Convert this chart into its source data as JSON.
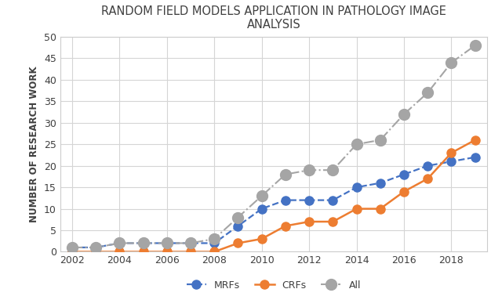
{
  "title": "RANDOM FIELD MODELS APPLICATION IN PATHOLOGY IMAGE\nANALYSIS",
  "ylabel": "NUMBER OF RESEARCH WORK",
  "xlabel": "",
  "years": [
    2002,
    2003,
    2004,
    2005,
    2006,
    2007,
    2008,
    2009,
    2010,
    2011,
    2012,
    2013,
    2014,
    2015,
    2016,
    2017,
    2018,
    2019
  ],
  "mrfs": [
    1,
    1,
    2,
    2,
    2,
    2,
    2,
    6,
    10,
    12,
    12,
    12,
    15,
    16,
    18,
    20,
    21,
    22
  ],
  "crfs": [
    0,
    0,
    0,
    0,
    0,
    0,
    0,
    2,
    3,
    6,
    7,
    7,
    10,
    10,
    14,
    17,
    23,
    26
  ],
  "all": [
    1,
    1,
    2,
    2,
    2,
    2,
    3,
    8,
    13,
    18,
    19,
    19,
    25,
    26,
    32,
    37,
    44,
    48
  ],
  "mrf_color": "#4472C4",
  "crf_color": "#ED7D31",
  "all_color": "#A5A5A5",
  "ylim": [
    0,
    50
  ],
  "yticks": [
    0,
    5,
    10,
    15,
    20,
    25,
    30,
    35,
    40,
    45,
    50
  ],
  "xticks": [
    2002,
    2004,
    2006,
    2008,
    2010,
    2012,
    2014,
    2016,
    2018
  ],
  "background_color": "#FFFFFF",
  "grid_color": "#D5D5D5",
  "title_fontsize": 10.5,
  "title_color": "#404040",
  "axis_label_fontsize": 8.5,
  "tick_fontsize": 9,
  "legend_fontsize": 9,
  "spine_color": "#CCCCCC"
}
